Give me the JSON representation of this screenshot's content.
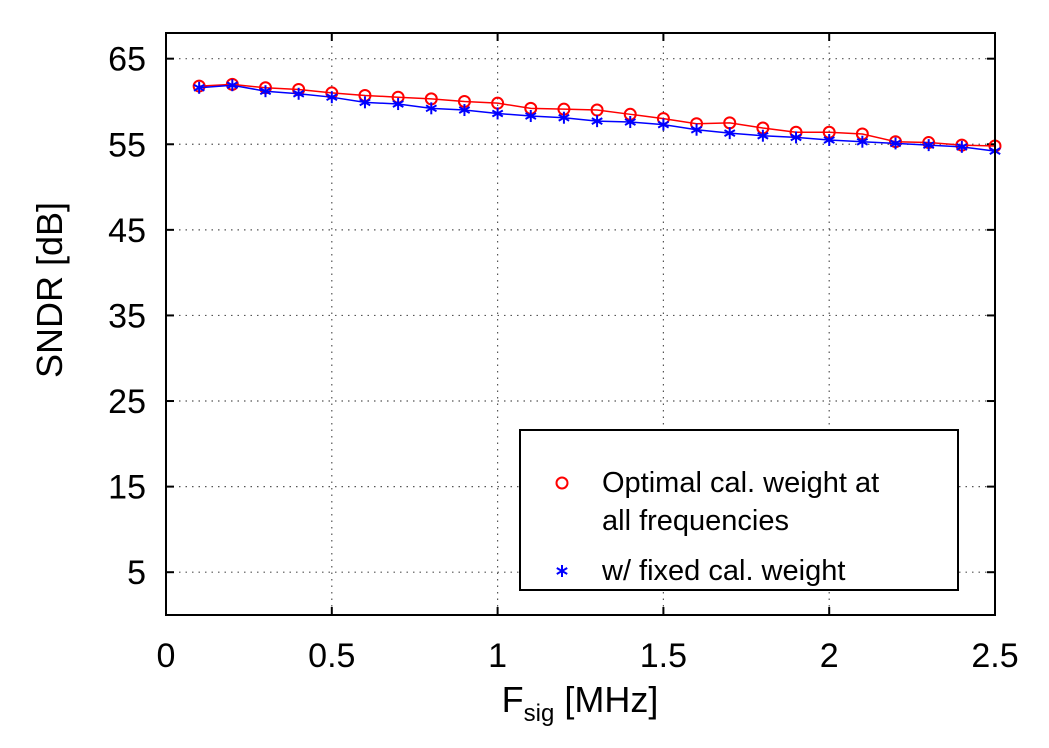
{
  "chart_data": {
    "type": "line",
    "xlabel_main": "F",
    "xlabel_sub": "sig",
    "xlabel_unit": " [MHz]",
    "ylabel": "SNDR [dB]",
    "xlim": [
      0,
      2.5
    ],
    "ylim": [
      0,
      68
    ],
    "xticks": [
      {
        "value": 0,
        "label": "0"
      },
      {
        "value": 0.5,
        "label": "0.5"
      },
      {
        "value": 1,
        "label": "1"
      },
      {
        "value": 1.5,
        "label": "1.5"
      },
      {
        "value": 2,
        "label": "2"
      },
      {
        "value": 2.5,
        "label": "2.5"
      }
    ],
    "yticks": [
      {
        "value": 5,
        "label": "5"
      },
      {
        "value": 15,
        "label": "15"
      },
      {
        "value": 25,
        "label": "25"
      },
      {
        "value": 35,
        "label": "35"
      },
      {
        "value": 45,
        "label": "45"
      },
      {
        "value": 55,
        "label": "55"
      },
      {
        "value": 65,
        "label": "65"
      }
    ],
    "grid": true,
    "legend_position": "bottom-right",
    "x": [
      0.1,
      0.2,
      0.3,
      0.4,
      0.5,
      0.6,
      0.7,
      0.8,
      0.9,
      1.0,
      1.1,
      1.2,
      1.3,
      1.4,
      1.5,
      1.6,
      1.7,
      1.8,
      1.9,
      2.0,
      2.1,
      2.2,
      2.3,
      2.4,
      2.5
    ],
    "series": [
      {
        "name": "Optimal cal. weight at all frequencies",
        "legend_lines": [
          "Optimal cal. weight at",
          "all frequencies"
        ],
        "marker": "circle",
        "color": "#ff0000",
        "values": [
          61.8,
          62.0,
          61.6,
          61.4,
          61.0,
          60.7,
          60.5,
          60.3,
          60.0,
          59.8,
          59.2,
          59.1,
          59.0,
          58.5,
          58.0,
          57.4,
          57.5,
          56.9,
          56.4,
          56.4,
          56.2,
          55.3,
          55.2,
          54.9,
          54.8
        ]
      },
      {
        "name": "w/ fixed cal. weight",
        "legend_lines": [
          "w/ fixed cal. weight"
        ],
        "marker": "asterisk",
        "color": "#0000ff",
        "values": [
          61.6,
          61.9,
          61.2,
          60.9,
          60.5,
          59.9,
          59.7,
          59.2,
          59.0,
          58.6,
          58.3,
          58.1,
          57.7,
          57.6,
          57.3,
          56.7,
          56.3,
          56.0,
          55.8,
          55.5,
          55.3,
          55.1,
          54.9,
          54.7,
          54.2
        ]
      }
    ]
  }
}
